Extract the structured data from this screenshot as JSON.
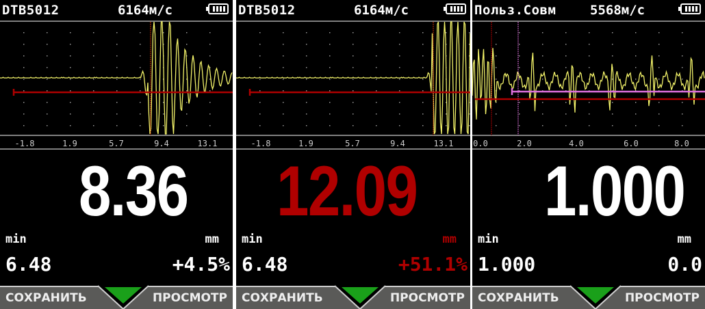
{
  "colors": {
    "trace": "#f3f36a",
    "gate_red": "#b00000",
    "gate_magenta": "#e070e0",
    "alert": "#b00000",
    "text": "#ffffff",
    "softkey_bg": "#5a5a58",
    "indicator": "#1aa01a"
  },
  "panels": [
    {
      "mode": "DTB5012",
      "velocity": "6164м/с",
      "battery": "battery-full-icon",
      "axis_ticks": [
        "-1.8",
        "1.9",
        "5.7",
        "9.4",
        "13.1"
      ],
      "reading": "8.36",
      "min_label": "min",
      "min_value": "6.48",
      "unit": "mm",
      "deviation": "+4.5%",
      "alert": false,
      "softkeys": {
        "left": "СОХРАНИТЬ",
        "right": "ПРОСМОТР"
      }
    },
    {
      "mode": "DTB5012",
      "velocity": "6164м/с",
      "battery": "battery-full-icon",
      "axis_ticks": [
        "-1.8",
        "1.9",
        "5.7",
        "9.4",
        "13.1"
      ],
      "reading": "12.09",
      "min_label": "min",
      "min_value": "6.48",
      "unit": "mm",
      "deviation": "+51.1%",
      "alert": true,
      "softkeys": {
        "left": "СОХРАНИТЬ",
        "right": "ПРОСМОТР"
      }
    },
    {
      "mode": "Польз.Совм",
      "velocity": "5568м/с",
      "battery": "battery-full-icon",
      "axis_ticks": [
        "0.0",
        "2.0",
        "4.0",
        "6.0",
        "8.0"
      ],
      "reading": "1.000",
      "min_label": "min",
      "min_value": "1.000",
      "unit": "mm",
      "deviation": "0.0",
      "alert": false,
      "softkeys": {
        "left": "СОХРАНИТЬ",
        "right": "ПРОСМОТР"
      }
    }
  ]
}
